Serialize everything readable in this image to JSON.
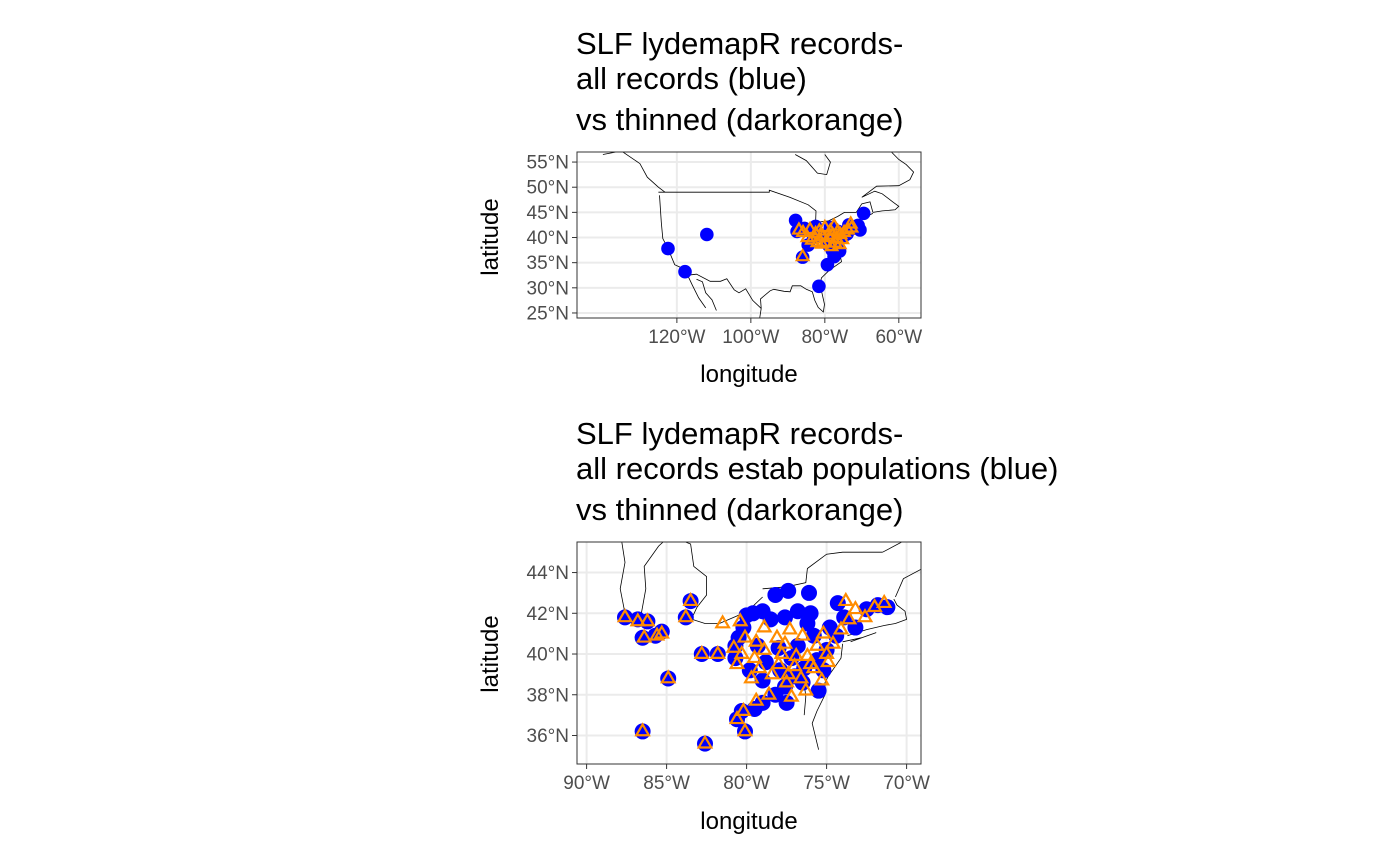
{
  "colors": {
    "all_records": "#0000ff",
    "thinned": "#ff8c00",
    "grid": "#ebebeb",
    "panel_border": "#333333",
    "coastline": "#000000",
    "tick_text": "#4d4d4d"
  },
  "chart_data": [
    {
      "type": "scatter",
      "map": true,
      "title": [
        "SLF lydemapR records-",
        "all records (blue)",
        "vs thinned (darkorange)"
      ],
      "xlabel": "longitude",
      "ylabel": "latitude",
      "xlim": [
        -147,
        -54
      ],
      "ylim": [
        24,
        57
      ],
      "xticks": [
        -120,
        -100,
        -80,
        -60
      ],
      "xtick_labels": [
        "120°W",
        "100°W",
        "80°W",
        "60°W"
      ],
      "yticks": [
        25,
        30,
        35,
        40,
        45,
        50,
        55
      ],
      "ytick_labels": [
        "25°N",
        "30°N",
        "35°N",
        "40°N",
        "45°N",
        "50°N",
        "55°N"
      ],
      "grid": true,
      "series": [
        {
          "marker": "circle",
          "color": "#0000ff",
          "points": [
            [
              -122.4,
              37.8
            ],
            [
              -117.8,
              33.2
            ],
            [
              -111.9,
              40.6
            ],
            [
              -87.9,
              43.4
            ],
            [
              -87.5,
              41.2
            ],
            [
              -81.6,
              30.3
            ],
            [
              -79.3,
              34.6
            ],
            [
              -77.5,
              36.2
            ],
            [
              -76.0,
              37.3
            ],
            [
              -70.5,
              41.5
            ],
            [
              -71.0,
              42.4
            ],
            [
              -69.5,
              44.8
            ],
            [
              -86.0,
              36.1
            ],
            [
              -84.5,
              38.5
            ],
            [
              -78.5,
              42.0
            ],
            [
              -73.5,
              42.5
            ],
            [
              -75.2,
              40.0
            ],
            [
              -77.5,
              39.2
            ],
            [
              -80.0,
              40.4
            ],
            [
              -76.4,
              41.2
            ],
            [
              -74.0,
              40.7
            ],
            [
              -83.0,
              40.0
            ],
            [
              -79.0,
              38.5
            ],
            [
              -72.5,
              41.8
            ],
            [
              -85.5,
              41.8
            ],
            [
              -82.5,
              42.2
            ],
            [
              -78.0,
              37.5
            ]
          ]
        },
        {
          "marker": "triangle",
          "color": "#ff8c00",
          "points": [
            [
              -87.0,
              41.5
            ],
            [
              -85.9,
              41.0
            ],
            [
              -84.7,
              40.0
            ],
            [
              -83.5,
              39.5
            ],
            [
              -82.5,
              40.8
            ],
            [
              -81.5,
              41.3
            ],
            [
              -80.5,
              40.2
            ],
            [
              -79.8,
              39.0
            ],
            [
              -78.8,
              40.0
            ],
            [
              -77.8,
              40.5
            ],
            [
              -76.8,
              39.8
            ],
            [
              -75.8,
              40.6
            ],
            [
              -74.8,
              41.0
            ],
            [
              -73.8,
              41.5
            ],
            [
              -72.8,
              41.9
            ],
            [
              -76.0,
              38.6
            ],
            [
              -77.2,
              38.9
            ],
            [
              -78.2,
              38.2
            ],
            [
              -80.8,
              38.7
            ],
            [
              -82.0,
              39.0
            ],
            [
              -84.0,
              41.6
            ],
            [
              -86.0,
              36.2
            ],
            [
              -78.5,
              41.3
            ],
            [
              -75.3,
              39.6
            ],
            [
              -77.5,
              42.3
            ],
            [
              -80.0,
              42.0
            ],
            [
              -73.0,
              42.7
            ],
            [
              -76.5,
              41.2
            ]
          ]
        }
      ]
    },
    {
      "type": "scatter",
      "map": true,
      "title": [
        "SLF lydemapR records-",
        "all records estab populations (blue)",
        "vs thinned (darkorange)"
      ],
      "xlabel": "longitude",
      "ylabel": "latitude",
      "xlim": [
        -90.6,
        -69.1
      ],
      "ylim": [
        34.6,
        45.5
      ],
      "xticks": [
        -90,
        -85,
        -80,
        -75,
        -70
      ],
      "xtick_labels": [
        "90°W",
        "85°W",
        "80°W",
        "75°W",
        "70°W"
      ],
      "yticks": [
        36,
        38,
        40,
        42,
        44
      ],
      "ytick_labels": [
        "36°N",
        "38°N",
        "40°N",
        "42°N",
        "44°N"
      ],
      "grid": true,
      "series": [
        {
          "marker": "circle",
          "color": "#0000ff",
          "points": [
            [
              -87.6,
              41.8
            ],
            [
              -86.8,
              41.7
            ],
            [
              -86.2,
              41.6
            ],
            [
              -86.5,
              40.8
            ],
            [
              -85.7,
              40.9
            ],
            [
              -85.3,
              41.1
            ],
            [
              -83.5,
              42.6
            ],
            [
              -83.8,
              41.8
            ],
            [
              -84.9,
              38.8
            ],
            [
              -82.8,
              40.0
            ],
            [
              -81.8,
              40.0
            ],
            [
              -86.5,
              36.2
            ],
            [
              -82.6,
              35.6
            ],
            [
              -79.6,
              42.0
            ],
            [
              -80.0,
              41.9
            ],
            [
              -79.0,
              42.1
            ],
            [
              -78.2,
              42.9
            ],
            [
              -77.4,
              43.1
            ],
            [
              -76.1,
              43.0
            ],
            [
              -76.8,
              42.1
            ],
            [
              -77.6,
              41.8
            ],
            [
              -78.5,
              41.7
            ],
            [
              -76.0,
              42.0
            ],
            [
              -74.3,
              42.5
            ],
            [
              -73.9,
              41.8
            ],
            [
              -72.5,
              42.2
            ],
            [
              -71.8,
              42.4
            ],
            [
              -71.2,
              42.3
            ],
            [
              -73.2,
              41.3
            ],
            [
              -74.4,
              40.9
            ],
            [
              -75.0,
              40.2
            ],
            [
              -75.6,
              39.7
            ],
            [
              -76.4,
              39.3
            ],
            [
              -77.0,
              38.9
            ],
            [
              -77.6,
              38.4
            ],
            [
              -78.2,
              38.0
            ],
            [
              -79.0,
              37.6
            ],
            [
              -79.5,
              37.3
            ],
            [
              -80.3,
              37.2
            ],
            [
              -80.6,
              36.8
            ],
            [
              -80.1,
              36.2
            ],
            [
              -77.5,
              37.6
            ],
            [
              -76.5,
              38.6
            ],
            [
              -75.5,
              38.2
            ],
            [
              -78.8,
              39.6
            ],
            [
              -79.8,
              39.2
            ],
            [
              -80.7,
              39.8
            ],
            [
              -80.5,
              40.8
            ],
            [
              -79.3,
              40.4
            ],
            [
              -78.0,
              40.3
            ],
            [
              -76.8,
              40.4
            ],
            [
              -75.8,
              40.9
            ],
            [
              -74.8,
              41.3
            ],
            [
              -77.2,
              39.8
            ],
            [
              -75.2,
              39.2
            ],
            [
              -80.2,
              41.3
            ],
            [
              -80.7,
              40.4
            ],
            [
              -79.0,
              38.7
            ],
            [
              -76.2,
              41.5
            ],
            [
              -77.9,
              39.2
            ]
          ]
        },
        {
          "marker": "triangle",
          "color": "#ff8c00",
          "points": [
            [
              -87.6,
              41.8
            ],
            [
              -86.8,
              41.6
            ],
            [
              -86.2,
              41.6
            ],
            [
              -86.4,
              40.8
            ],
            [
              -85.6,
              40.9
            ],
            [
              -85.3,
              41.0
            ],
            [
              -83.5,
              42.6
            ],
            [
              -83.8,
              41.8
            ],
            [
              -84.9,
              38.8
            ],
            [
              -82.8,
              40.0
            ],
            [
              -81.8,
              40.0
            ],
            [
              -86.5,
              36.2
            ],
            [
              -82.6,
              35.6
            ],
            [
              -81.5,
              41.5
            ],
            [
              -80.4,
              41.6
            ],
            [
              -80.1,
              40.8
            ],
            [
              -80.8,
              40.3
            ],
            [
              -80.6,
              39.5
            ],
            [
              -79.5,
              39.8
            ],
            [
              -79.7,
              38.8
            ],
            [
              -80.2,
              37.2
            ],
            [
              -80.6,
              36.8
            ],
            [
              -80.1,
              36.2
            ],
            [
              -79.4,
              37.7
            ],
            [
              -78.6,
              38.0
            ],
            [
              -78.4,
              39.0
            ],
            [
              -78.9,
              40.2
            ],
            [
              -78.1,
              40.8
            ],
            [
              -77.3,
              41.2
            ],
            [
              -77.8,
              40.0
            ],
            [
              -77.0,
              39.4
            ],
            [
              -76.6,
              38.8
            ],
            [
              -76.2,
              39.9
            ],
            [
              -75.6,
              40.4
            ],
            [
              -75.2,
              41.0
            ],
            [
              -74.6,
              40.5
            ],
            [
              -74.1,
              41.2
            ],
            [
              -73.6,
              41.7
            ],
            [
              -73.2,
              42.2
            ],
            [
              -72.6,
              41.8
            ],
            [
              -72.0,
              42.3
            ],
            [
              -71.4,
              42.5
            ],
            [
              -73.8,
              42.6
            ],
            [
              -76.3,
              38.2
            ],
            [
              -75.3,
              38.7
            ],
            [
              -75.8,
              39.3
            ],
            [
              -77.2,
              37.9
            ],
            [
              -77.5,
              38.6
            ],
            [
              -78.9,
              41.3
            ],
            [
              -76.5,
              40.9
            ],
            [
              -74.9,
              39.6
            ],
            [
              -76.9,
              39.9
            ],
            [
              -79.2,
              39.3
            ],
            [
              -78.0,
              39.5
            ],
            [
              -76.0,
              39.5
            ],
            [
              -75.0,
              40.0
            ],
            [
              -77.6,
              40.5
            ],
            [
              -79.4,
              40.6
            ],
            [
              -80.3,
              40.0
            ],
            [
              -77.4,
              39.0
            ]
          ]
        }
      ]
    }
  ]
}
